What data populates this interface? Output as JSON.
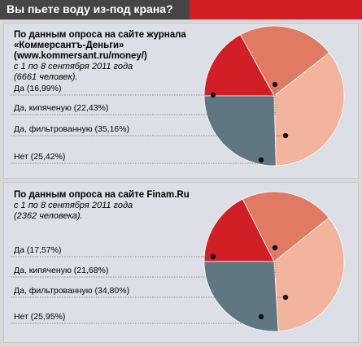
{
  "header": {
    "title": "Вы пьете воду из-под крана?"
  },
  "colors": {
    "title_bg": "#454545",
    "accent_red": "#d21f26",
    "panel_bg": "#dcdfe6",
    "slice_da": "#d21f26",
    "slice_kip": "#e17a63",
    "slice_filtr": "#f3b49d",
    "slice_net": "#5f7780"
  },
  "chart_data": [
    {
      "type": "pie",
      "source": {
        "title_lines": [
          "По данным опроса на сайте журнала",
          "«Коммерсантъ-Деньги»",
          "(www.kommersant.ru/money/)"
        ],
        "subtitle_lines": [
          "с 1 по 8 сентября 2011 года",
          "(6661 человек)."
        ]
      },
      "labels": [
        "Да (16,99%)",
        "Да, кипяченую (22,43%)",
        "Да, фильтрованную (35,16%)",
        "Нет (25,42%)"
      ],
      "categories": [
        "Да",
        "Да, кипяченую",
        "Да, фильтрованную",
        "Нет"
      ],
      "values": [
        16.99,
        22.43,
        35.16,
        25.42
      ]
    },
    {
      "type": "pie",
      "source": {
        "title_lines": [
          "По данным опроса на сайте Finam.Ru"
        ],
        "subtitle_lines": [
          "с 1 по 8 сентября 2011 года",
          "(2362 человека)."
        ]
      },
      "labels": [
        "Да (17,57%)",
        "Да, кипяченую (21,68%)",
        "Да, фильтрованную (34,80%)",
        "Нет (25,95%)"
      ],
      "categories": [
        "Да",
        "Да, кипяченую",
        "Да, фильтрованную",
        "Нет"
      ],
      "values": [
        17.57,
        21.68,
        34.8,
        25.95
      ]
    }
  ]
}
